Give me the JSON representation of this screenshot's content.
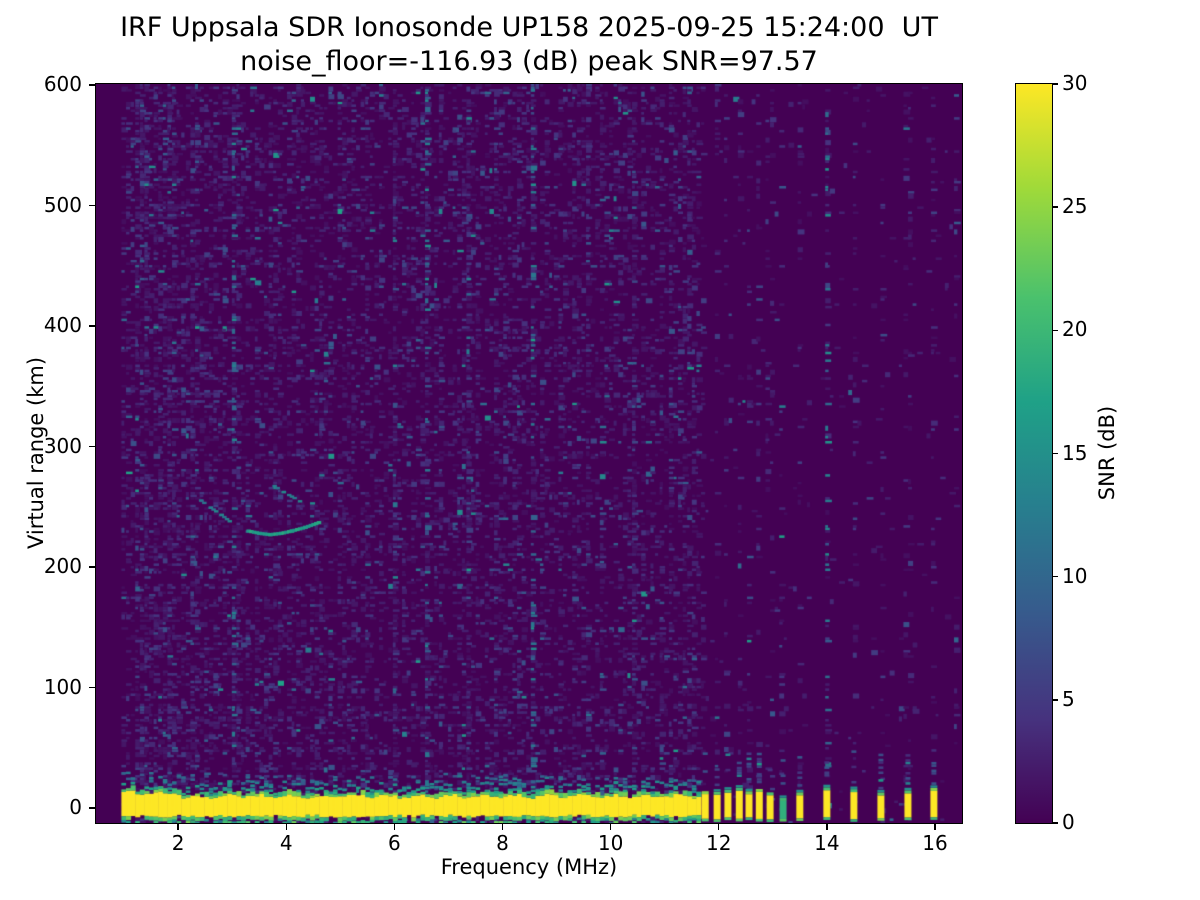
{
  "figure": {
    "title_line1": "IRF Uppsala SDR Ionosonde UP158 2025-09-25 15:24:00  UT",
    "title_line2": "noise_floor=-116.93 (dB) peak SNR=97.57",
    "background": "#ffffff",
    "station": "UP158",
    "timestamp": "2025-09-25 15:24:00 UT",
    "noise_floor_db": -116.93,
    "peak_snr_db": 97.57
  },
  "axes": {
    "xlabel": "Frequency (MHz)",
    "ylabel": "Virtual range (km)",
    "x_ticks": [
      2,
      4,
      6,
      8,
      10,
      12,
      14,
      16
    ],
    "y_ticks": [
      0,
      100,
      200,
      300,
      400,
      500,
      600
    ],
    "x_range": [
      0.48,
      16.5
    ],
    "y_range": [
      -12.4,
      600.9
    ]
  },
  "colorbar": {
    "label": "SNR (dB)",
    "ticks": [
      0,
      5,
      10,
      15,
      20,
      25,
      30
    ],
    "range": [
      0,
      30
    ],
    "colormap": "viridis",
    "stops": [
      "#440154",
      "#46327e",
      "#365c8d",
      "#277f8e",
      "#1fa187",
      "#4ac16d",
      "#a0da39",
      "#fde725"
    ]
  },
  "chart_data": {
    "type": "heatmap",
    "x_unit": "MHz",
    "y_unit": "km",
    "z_unit": "dB SNR",
    "x_range": [
      0.48,
      16.5
    ],
    "y_range": [
      -12.4,
      600.9
    ],
    "z_range": [
      0,
      30
    ],
    "data_start_freq": 0.95,
    "data_end_freq": 16.45,
    "background_db": 0,
    "ground_band": {
      "freq_start": 0.95,
      "freq_end": 11.62,
      "center_km": 0,
      "core_top_km": 11,
      "core_bottom_km": -7,
      "core_db": 30,
      "fringe_db": 21
    },
    "tx_bars": [
      {
        "f": 11.75,
        "dim": false
      },
      {
        "f": 11.97,
        "dim": false
      },
      {
        "f": 12.17,
        "dim": false
      },
      {
        "f": 12.38,
        "dim": false
      },
      {
        "f": 12.56,
        "dim": false
      },
      {
        "f": 12.75,
        "dim": false
      },
      {
        "f": 12.95,
        "dim": false
      },
      {
        "f": 13.19,
        "dim": true
      },
      {
        "f": 13.5,
        "dim": false
      },
      {
        "f": 14.0,
        "dim": false
      },
      {
        "f": 14.5,
        "dim": false
      },
      {
        "f": 15.0,
        "dim": false
      },
      {
        "f": 15.5,
        "dim": false
      },
      {
        "f": 15.98,
        "dim": false
      }
    ],
    "echo_trace": {
      "segments": [
        {
          "style": "dotted",
          "intensity_db": 13,
          "points": [
            [
              2.42,
              255
            ],
            [
              2.6,
              249
            ],
            [
              2.8,
              243
            ],
            [
              3.0,
              236
            ]
          ]
        },
        {
          "style": "solid",
          "intensity_db": 17,
          "points": [
            [
              3.3,
              230
            ],
            [
              3.5,
              228
            ],
            [
              3.7,
              227
            ],
            [
              3.9,
              228
            ],
            [
              4.1,
              230
            ],
            [
              4.35,
              233
            ],
            [
              4.6,
              237
            ]
          ]
        },
        {
          "style": "dotted",
          "intensity_db": 13,
          "points": [
            [
              3.78,
              267
            ],
            [
              3.95,
              262
            ],
            [
              4.15,
              257
            ],
            [
              4.3,
              253
            ]
          ]
        }
      ]
    },
    "noise": {
      "floor_color": "#440154",
      "speckle_db_range": [
        1,
        16
      ],
      "continuous_region_max_freq": 11.65,
      "streak_freqs": [
        {
          "f": 1.38,
          "m": 2.6,
          "b": 0
        },
        {
          "f": 1.85,
          "m": 2.2,
          "b": 0
        },
        {
          "f": 2.33,
          "m": 2.0,
          "b": 0
        },
        {
          "f": 3.07,
          "m": 3.0,
          "b": 1
        },
        {
          "f": 3.9,
          "m": 2.4,
          "b": 0
        },
        {
          "f": 4.85,
          "m": 2.2,
          "b": 0
        },
        {
          "f": 5.5,
          "m": 1.8,
          "b": 0
        },
        {
          "f": 6.05,
          "m": 2.4,
          "b": 0
        },
        {
          "f": 6.6,
          "m": 3.0,
          "b": 1
        },
        {
          "f": 7.35,
          "m": 2.0,
          "b": 0
        },
        {
          "f": 7.9,
          "m": 2.4,
          "b": 0
        },
        {
          "f": 8.55,
          "m": 2.6,
          "b": 1
        },
        {
          "f": 9.55,
          "m": 2.2,
          "b": 0
        },
        {
          "f": 10.4,
          "m": 2.4,
          "b": 0
        },
        {
          "f": 11.1,
          "m": 2.0,
          "b": 0
        }
      ],
      "right_dotted_freqs": [
        {
          "f": 11.75,
          "m": 2.2,
          "b": 0
        },
        {
          "f": 11.97,
          "m": 2.6,
          "b": 0
        },
        {
          "f": 12.17,
          "m": 2.2,
          "b": 0
        },
        {
          "f": 12.38,
          "m": 2.0,
          "b": 0
        },
        {
          "f": 12.56,
          "m": 2.2,
          "b": 0
        },
        {
          "f": 12.75,
          "m": 2.0,
          "b": 0
        },
        {
          "f": 12.95,
          "m": 1.8,
          "b": 0
        },
        {
          "f": 13.19,
          "m": 1.6,
          "b": 0
        },
        {
          "f": 13.5,
          "m": 2.2,
          "b": 0
        },
        {
          "f": 14.0,
          "m": 4.5,
          "b": 1
        },
        {
          "f": 14.5,
          "m": 2.6,
          "b": 0
        },
        {
          "f": 15.0,
          "m": 2.2,
          "b": 0
        },
        {
          "f": 15.5,
          "m": 2.4,
          "b": 0
        },
        {
          "f": 15.98,
          "m": 2.2,
          "b": 0
        },
        {
          "f": 16.4,
          "m": 2.0,
          "b": 0
        }
      ]
    }
  }
}
